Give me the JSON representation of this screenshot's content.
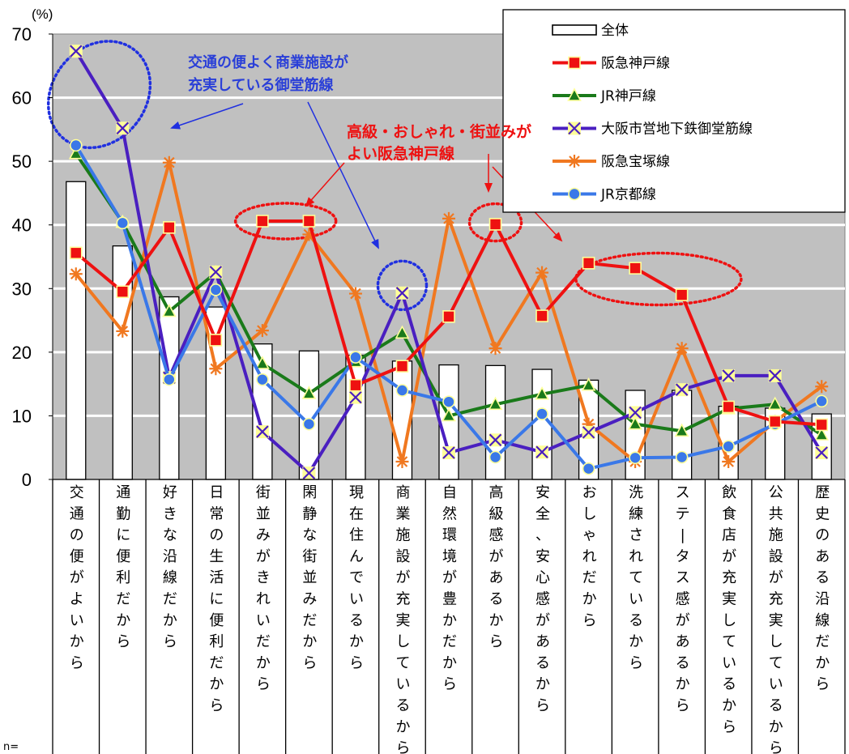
{
  "chart_data": {
    "type": "bar+line",
    "unit_label": "(%)",
    "ylim": [
      0,
      70
    ],
    "yticks": [
      0,
      10,
      20,
      30,
      40,
      50,
      60,
      70
    ],
    "grid": true,
    "legend_position": "top-right",
    "categories": [
      "交通の便がよいから",
      "通勤に便利だから",
      "好きな沿線だから",
      "日常の生活に便利だから",
      "街並みがきれいだから",
      "閑静な街並みだから",
      "現在住んでいるから",
      "商業施設が充実しているから",
      "自然環境が豊かだから",
      "高級感があるから",
      "安全、安心感があるから",
      "おしゃれだから",
      "洗練されているから",
      "ステータス感があるから",
      "飲食店が充実しているから",
      "公共施設が充実しているから",
      "歴史のある沿線だから"
    ],
    "bars": {
      "name": "全体",
      "values": [
        46.8,
        36.7,
        28.7,
        27.1,
        21.3,
        20.2,
        19.5,
        18.6,
        18.0,
        17.9,
        17.3,
        15.6,
        14.0,
        14.0,
        11.5,
        11.2,
        10.3
      ]
    },
    "series": [
      {
        "name": "阪急神戸線",
        "color": "#ee1111",
        "marker": "square",
        "values": [
          35.6,
          29.5,
          39.6,
          21.9,
          40.6,
          40.6,
          14.8,
          17.8,
          25.6,
          40.1,
          25.7,
          34.0,
          33.2,
          29.0,
          11.4,
          9.1,
          8.6
        ]
      },
      {
        "name": "JR神戸線",
        "color": "#1a7a1a",
        "marker": "triangle",
        "values": [
          51.2,
          40.4,
          26.4,
          32.5,
          18.2,
          13.5,
          18.5,
          23.0,
          10.0,
          11.8,
          13.4,
          14.8,
          8.7,
          7.6,
          11.1,
          11.8,
          7.0
        ]
      },
      {
        "name": "大阪市営地下鉄御堂筋線",
        "color": "#4a1fc0",
        "marker": "x",
        "values": [
          67.3,
          55.2,
          16.0,
          32.6,
          7.5,
          1.0,
          12.9,
          29.3,
          4.2,
          6.2,
          4.3,
          7.4,
          10.5,
          14.1,
          16.3,
          16.3,
          4.2
        ]
      },
      {
        "name": "阪急宝塚線",
        "color": "#f07820",
        "marker": "star",
        "values": [
          32.3,
          23.3,
          49.8,
          17.4,
          23.4,
          38.5,
          29.2,
          2.8,
          41.0,
          20.6,
          32.5,
          8.7,
          2.8,
          20.6,
          2.8,
          9.1,
          14.6
        ]
      },
      {
        "name": "JR京都線",
        "color": "#3a78e8",
        "marker": "circle",
        "values": [
          52.5,
          40.3,
          15.7,
          29.8,
          15.7,
          8.7,
          19.2,
          14.0,
          12.2,
          3.5,
          10.3,
          1.7,
          3.4,
          3.5,
          5.2,
          8.7,
          12.3
        ]
      }
    ],
    "annotations": [
      {
        "text_lines": [
          "交通の便よく商業施設が",
          "充実している御堂筋線"
        ],
        "color": "#2a3fd8"
      },
      {
        "text_lines": [
          "高級・おしゃれ・街並みが",
          "よい阪急神戸線"
        ],
        "color": "#ee1111"
      }
    ],
    "n_label": "n="
  }
}
